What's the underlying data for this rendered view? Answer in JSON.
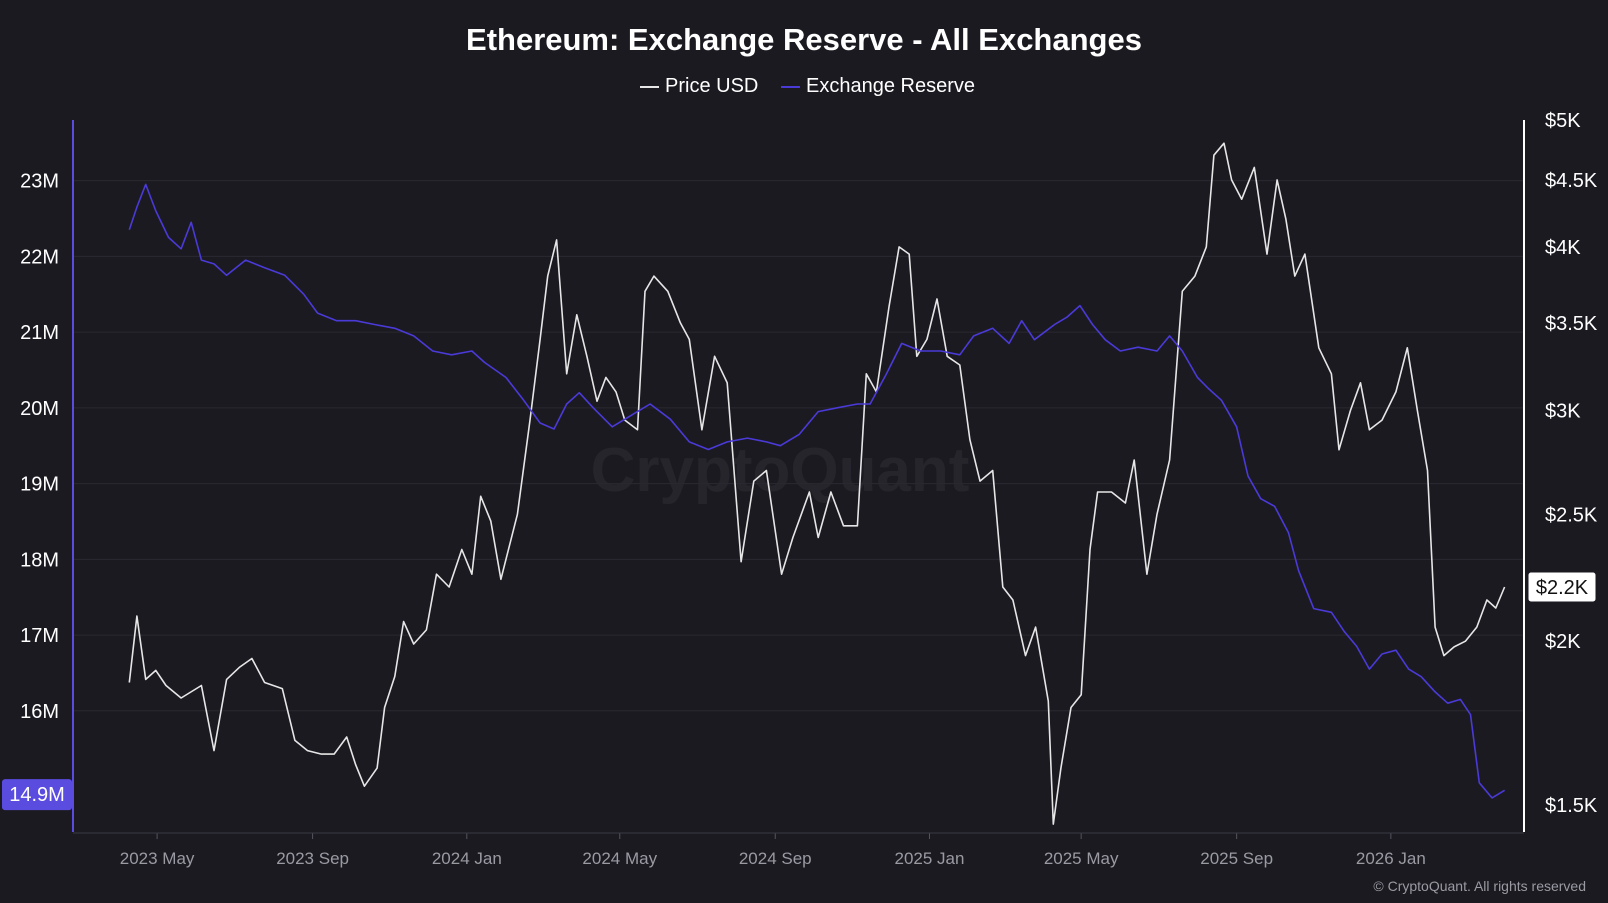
{
  "chart_data": {
    "type": "line",
    "title": "Ethereum: Exchange Reserve - All Exchanges",
    "watermark": "CryptoQuant",
    "footer": "© CryptoQuant. All rights reserved",
    "grid": true,
    "legend_position": "top-center",
    "x_range": [
      "2023-03-01",
      "2026-04-10"
    ],
    "x_ticks": [
      "2023 May",
      "2023 Sep",
      "2024 Jan",
      "2024 May",
      "2024 Sep",
      "2025 Jan",
      "2025 May",
      "2025 Sep",
      "2026 Jan"
    ],
    "x_tick_dates": [
      "2023-05-01",
      "2023-09-01",
      "2024-01-01",
      "2024-05-01",
      "2024-09-01",
      "2025-01-01",
      "2025-05-01",
      "2025-09-01",
      "2026-01-01"
    ],
    "left_axis": {
      "ylim": [
        14.4,
        23.8
      ],
      "unit": "M",
      "ticks": [
        "23M",
        "22M",
        "21M",
        "20M",
        "19M",
        "18M",
        "17M",
        "16M"
      ],
      "tick_values": [
        23,
        22,
        21,
        20,
        19,
        18,
        17,
        16
      ],
      "current_label": "14.9M",
      "current_value": 14.9,
      "color": "#5b4ce0"
    },
    "right_axis": {
      "scale": "log",
      "ylim": [
        1430,
        5000
      ],
      "ticks": [
        "$5K",
        "$4.5K",
        "$4K",
        "$3.5K",
        "$3K",
        "$2.5K",
        "$2K",
        "$1.5K"
      ],
      "tick_values": [
        5000,
        4500,
        4000,
        3500,
        3000,
        2500,
        2000,
        1500
      ],
      "current_label": "$2.2K",
      "current_value": 2200,
      "color": "#ffffff"
    },
    "series": [
      {
        "name": "Price USD",
        "axis": "right",
        "color": "#e6e6e6",
        "points": [
          [
            "2023-04-09",
            1860
          ],
          [
            "2023-04-15",
            2090
          ],
          [
            "2023-04-22",
            1870
          ],
          [
            "2023-04-30",
            1900
          ],
          [
            "2023-05-08",
            1850
          ],
          [
            "2023-05-20",
            1810
          ],
          [
            "2023-06-05",
            1850
          ],
          [
            "2023-06-15",
            1650
          ],
          [
            "2023-06-25",
            1870
          ],
          [
            "2023-07-05",
            1910
          ],
          [
            "2023-07-15",
            1940
          ],
          [
            "2023-07-25",
            1860
          ],
          [
            "2023-08-08",
            1840
          ],
          [
            "2023-08-18",
            1680
          ],
          [
            "2023-08-28",
            1650
          ],
          [
            "2023-09-08",
            1640
          ],
          [
            "2023-09-18",
            1640
          ],
          [
            "2023-09-28",
            1690
          ],
          [
            "2023-10-05",
            1610
          ],
          [
            "2023-10-12",
            1550
          ],
          [
            "2023-10-22",
            1600
          ],
          [
            "2023-10-28",
            1780
          ],
          [
            "2023-11-05",
            1880
          ],
          [
            "2023-11-12",
            2070
          ],
          [
            "2023-11-20",
            1990
          ],
          [
            "2023-11-30",
            2040
          ],
          [
            "2023-12-08",
            2250
          ],
          [
            "2023-12-18",
            2200
          ],
          [
            "2023-12-28",
            2350
          ],
          [
            "2024-01-05",
            2250
          ],
          [
            "2024-01-12",
            2580
          ],
          [
            "2024-01-20",
            2470
          ],
          [
            "2024-01-28",
            2230
          ],
          [
            "2024-02-10",
            2500
          ],
          [
            "2024-02-20",
            2950
          ],
          [
            "2024-02-28",
            3400
          ],
          [
            "2024-03-05",
            3800
          ],
          [
            "2024-03-12",
            4050
          ],
          [
            "2024-03-20",
            3200
          ],
          [
            "2024-03-28",
            3550
          ],
          [
            "2024-04-05",
            3300
          ],
          [
            "2024-04-13",
            3050
          ],
          [
            "2024-04-20",
            3180
          ],
          [
            "2024-04-28",
            3100
          ],
          [
            "2024-05-05",
            2950
          ],
          [
            "2024-05-15",
            2900
          ],
          [
            "2024-05-21",
            3700
          ],
          [
            "2024-05-28",
            3800
          ],
          [
            "2024-06-08",
            3700
          ],
          [
            "2024-06-18",
            3500
          ],
          [
            "2024-06-25",
            3400
          ],
          [
            "2024-07-05",
            2900
          ],
          [
            "2024-07-15",
            3300
          ],
          [
            "2024-07-25",
            3150
          ],
          [
            "2024-08-05",
            2300
          ],
          [
            "2024-08-15",
            2650
          ],
          [
            "2024-08-25",
            2700
          ],
          [
            "2024-09-06",
            2250
          ],
          [
            "2024-09-15",
            2400
          ],
          [
            "2024-09-28",
            2600
          ],
          [
            "2024-10-05",
            2400
          ],
          [
            "2024-10-15",
            2600
          ],
          [
            "2024-10-25",
            2450
          ],
          [
            "2024-11-05",
            2450
          ],
          [
            "2024-11-12",
            3200
          ],
          [
            "2024-11-20",
            3100
          ],
          [
            "2024-11-30",
            3600
          ],
          [
            "2024-12-08",
            4000
          ],
          [
            "2024-12-16",
            3950
          ],
          [
            "2024-12-22",
            3300
          ],
          [
            "2024-12-30",
            3400
          ],
          [
            "2025-01-07",
            3650
          ],
          [
            "2025-01-15",
            3300
          ],
          [
            "2025-01-25",
            3250
          ],
          [
            "2025-02-02",
            2850
          ],
          [
            "2025-02-10",
            2650
          ],
          [
            "2025-02-20",
            2700
          ],
          [
            "2025-02-28",
            2200
          ],
          [
            "2025-03-08",
            2150
          ],
          [
            "2025-03-18",
            1950
          ],
          [
            "2025-03-26",
            2050
          ],
          [
            "2025-04-05",
            1800
          ],
          [
            "2025-04-09",
            1450
          ],
          [
            "2025-04-15",
            1600
          ],
          [
            "2025-04-23",
            1780
          ],
          [
            "2025-05-01",
            1820
          ],
          [
            "2025-05-08",
            2350
          ],
          [
            "2025-05-14",
            2600
          ],
          [
            "2025-05-25",
            2600
          ],
          [
            "2025-06-05",
            2550
          ],
          [
            "2025-06-12",
            2750
          ],
          [
            "2025-06-22",
            2250
          ],
          [
            "2025-06-30",
            2500
          ],
          [
            "2025-07-10",
            2750
          ],
          [
            "2025-07-20",
            3700
          ],
          [
            "2025-07-30",
            3800
          ],
          [
            "2025-08-08",
            4000
          ],
          [
            "2025-08-14",
            4700
          ],
          [
            "2025-08-22",
            4800
          ],
          [
            "2025-08-28",
            4500
          ],
          [
            "2025-09-05",
            4350
          ],
          [
            "2025-09-15",
            4600
          ],
          [
            "2025-09-25",
            3950
          ],
          [
            "2025-10-03",
            4500
          ],
          [
            "2025-10-10",
            4200
          ],
          [
            "2025-10-17",
            3800
          ],
          [
            "2025-10-25",
            3950
          ],
          [
            "2025-11-05",
            3350
          ],
          [
            "2025-11-15",
            3200
          ],
          [
            "2025-11-21",
            2800
          ],
          [
            "2025-11-30",
            3000
          ],
          [
            "2025-12-08",
            3150
          ],
          [
            "2025-12-15",
            2900
          ],
          [
            "2025-12-25",
            2950
          ],
          [
            "2026-01-05",
            3100
          ],
          [
            "2026-01-14",
            3350
          ],
          [
            "2026-01-22",
            3000
          ],
          [
            "2026-01-30",
            2700
          ],
          [
            "2026-02-05",
            2050
          ],
          [
            "2026-02-12",
            1950
          ],
          [
            "2026-02-20",
            1980
          ],
          [
            "2026-03-01",
            2000
          ],
          [
            "2026-03-10",
            2050
          ],
          [
            "2026-03-18",
            2150
          ],
          [
            "2026-03-25",
            2120
          ],
          [
            "2026-04-01",
            2200
          ]
        ]
      },
      {
        "name": "Exchange Reserve",
        "axis": "left",
        "color": "#4a3ad8",
        "points": [
          [
            "2023-04-09",
            22.35
          ],
          [
            "2023-04-15",
            22.65
          ],
          [
            "2023-04-22",
            22.95
          ],
          [
            "2023-04-30",
            22.6
          ],
          [
            "2023-05-10",
            22.25
          ],
          [
            "2023-05-20",
            22.1
          ],
          [
            "2023-05-28",
            22.45
          ],
          [
            "2023-06-05",
            21.95
          ],
          [
            "2023-06-15",
            21.9
          ],
          [
            "2023-06-25",
            21.75
          ],
          [
            "2023-07-10",
            21.95
          ],
          [
            "2023-07-25",
            21.85
          ],
          [
            "2023-08-10",
            21.75
          ],
          [
            "2023-08-25",
            21.5
          ],
          [
            "2023-09-05",
            21.25
          ],
          [
            "2023-09-20",
            21.15
          ],
          [
            "2023-10-05",
            21.15
          ],
          [
            "2023-10-20",
            21.1
          ],
          [
            "2023-11-05",
            21.05
          ],
          [
            "2023-11-20",
            20.95
          ],
          [
            "2023-12-05",
            20.75
          ],
          [
            "2023-12-20",
            20.7
          ],
          [
            "2024-01-05",
            20.75
          ],
          [
            "2024-01-15",
            20.6
          ],
          [
            "2024-02-01",
            20.4
          ],
          [
            "2024-02-15",
            20.1
          ],
          [
            "2024-02-28",
            19.8
          ],
          [
            "2024-03-10",
            19.72
          ],
          [
            "2024-03-20",
            20.05
          ],
          [
            "2024-03-30",
            20.2
          ],
          [
            "2024-04-10",
            20.0
          ],
          [
            "2024-04-25",
            19.75
          ],
          [
            "2024-05-10",
            19.9
          ],
          [
            "2024-05-25",
            20.05
          ],
          [
            "2024-06-10",
            19.85
          ],
          [
            "2024-06-25",
            19.55
          ],
          [
            "2024-07-10",
            19.45
          ],
          [
            "2024-07-25",
            19.55
          ],
          [
            "2024-08-10",
            19.6
          ],
          [
            "2024-08-25",
            19.55
          ],
          [
            "2024-09-05",
            19.5
          ],
          [
            "2024-09-20",
            19.65
          ],
          [
            "2024-10-05",
            19.95
          ],
          [
            "2024-10-20",
            20.0
          ],
          [
            "2024-11-05",
            20.05
          ],
          [
            "2024-11-15",
            20.05
          ],
          [
            "2024-11-28",
            20.45
          ],
          [
            "2024-12-10",
            20.85
          ],
          [
            "2024-12-25",
            20.75
          ],
          [
            "2025-01-10",
            20.75
          ],
          [
            "2025-01-25",
            20.7
          ],
          [
            "2025-02-05",
            20.95
          ],
          [
            "2025-02-20",
            21.05
          ],
          [
            "2025-03-05",
            20.85
          ],
          [
            "2025-03-15",
            21.15
          ],
          [
            "2025-03-25",
            20.9
          ],
          [
            "2025-04-10",
            21.1
          ],
          [
            "2025-04-20",
            21.2
          ],
          [
            "2025-04-30",
            21.35
          ],
          [
            "2025-05-10",
            21.1
          ],
          [
            "2025-05-20",
            20.9
          ],
          [
            "2025-06-01",
            20.75
          ],
          [
            "2025-06-15",
            20.8
          ],
          [
            "2025-06-30",
            20.75
          ],
          [
            "2025-07-10",
            20.95
          ],
          [
            "2025-07-20",
            20.75
          ],
          [
            "2025-08-01",
            20.4
          ],
          [
            "2025-08-10",
            20.25
          ],
          [
            "2025-08-20",
            20.1
          ],
          [
            "2025-09-01",
            19.75
          ],
          [
            "2025-09-10",
            19.1
          ],
          [
            "2025-09-20",
            18.8
          ],
          [
            "2025-10-01",
            18.7
          ],
          [
            "2025-10-12",
            18.35
          ],
          [
            "2025-10-20",
            17.85
          ],
          [
            "2025-11-01",
            17.35
          ],
          [
            "2025-11-15",
            17.3
          ],
          [
            "2025-11-25",
            17.05
          ],
          [
            "2025-12-05",
            16.85
          ],
          [
            "2025-12-15",
            16.55
          ],
          [
            "2025-12-25",
            16.75
          ],
          [
            "2026-01-05",
            16.8
          ],
          [
            "2026-01-15",
            16.55
          ],
          [
            "2026-01-25",
            16.45
          ],
          [
            "2026-02-05",
            16.25
          ],
          [
            "2026-02-15",
            16.1
          ],
          [
            "2026-02-25",
            16.15
          ],
          [
            "2026-03-05",
            15.95
          ],
          [
            "2026-03-12",
            15.05
          ],
          [
            "2026-03-22",
            14.85
          ],
          [
            "2026-04-01",
            14.95
          ]
        ]
      }
    ]
  }
}
